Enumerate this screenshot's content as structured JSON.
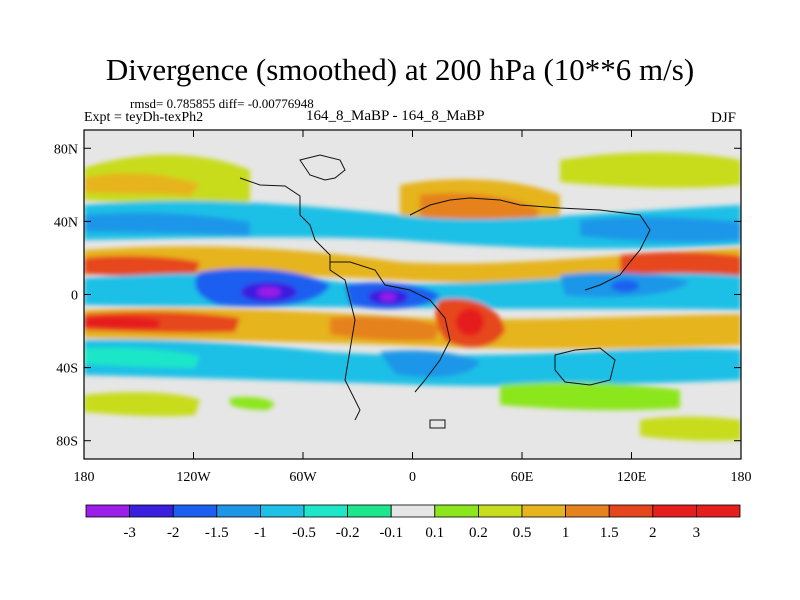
{
  "header": {
    "title": "Divergence (smoothed) at 200 hPa (10**6 m/s)",
    "stats": "rmsd= 0.785855 diff= -0.00776948",
    "expt": "Expt = teyDh-texPh2",
    "subtitle": "164_8_MaBP - 164_8_MaBP",
    "season": "DJF"
  },
  "chart_data": {
    "type": "heatmap",
    "title": "Divergence (smoothed) at 200 hPa (10**6 m/s)",
    "xlabel": "",
    "ylabel": "",
    "xlim": [
      -180,
      180
    ],
    "ylim": [
      -90,
      90
    ],
    "x_ticks": [
      {
        "value": -180,
        "label": "180"
      },
      {
        "value": -120,
        "label": "120W"
      },
      {
        "value": -60,
        "label": "60W"
      },
      {
        "value": 0,
        "label": "0"
      },
      {
        "value": 60,
        "label": "60E"
      },
      {
        "value": 120,
        "label": "120E"
      },
      {
        "value": 180,
        "label": "180"
      }
    ],
    "y_ticks": [
      {
        "value": 80,
        "label": "80N"
      },
      {
        "value": 40,
        "label": "40N"
      },
      {
        "value": 0,
        "label": "0"
      },
      {
        "value": -40,
        "label": "40S"
      },
      {
        "value": -80,
        "label": "80S"
      }
    ],
    "colorbar": {
      "labels": [
        "-3",
        "-2",
        "-1.5",
        "-1",
        "-0.5",
        "-0.2",
        "-0.1",
        "0.1",
        "0.2",
        "0.5",
        "1",
        "1.5",
        "2",
        "3"
      ],
      "colors": [
        "#9b1fe8",
        "#3a1fe0",
        "#1a5ff0",
        "#1e96e8",
        "#1ec0e6",
        "#1ee6c8",
        "#1ee68c",
        "#e6e6e6",
        "#8ce61e",
        "#c8dc1e",
        "#e6b41e",
        "#e6821e",
        "#e6461e",
        "#e61e1e",
        "#e61e1e"
      ]
    },
    "features": [
      {
        "lon": -15,
        "lat": 2,
        "value": -3
      },
      {
        "lon": -75,
        "lat": 5,
        "value": -2.5
      },
      {
        "lon": 150,
        "lat": 5,
        "value": -1.5
      },
      {
        "lon": 40,
        "lat": -10,
        "value": 2
      },
      {
        "lon": -150,
        "lat": -12,
        "value": 2
      },
      {
        "lon": 160,
        "lat": 15,
        "value": 2
      },
      {
        "lon": -160,
        "lat": 15,
        "value": 1.5
      }
    ]
  }
}
